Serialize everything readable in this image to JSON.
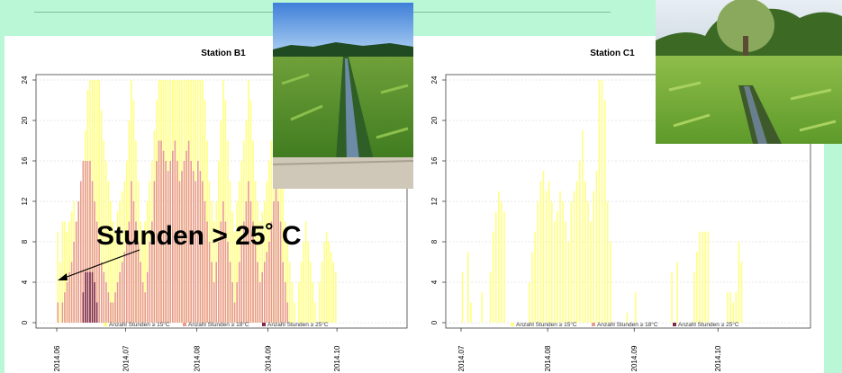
{
  "annotation": "Stunden > 25˚ C",
  "colors": {
    "background": "#b9f7d6",
    "ge15": "#ffff7f",
    "ge18": "#e89a8c",
    "ge25": "#7f2a4a",
    "grid": "#cfcfcf"
  },
  "chart_data": [
    {
      "type": "bar",
      "title": "Station B1",
      "ylim": [
        0,
        24
      ],
      "yticks": [
        "0",
        "4",
        "8",
        "12",
        "16",
        "20",
        "24"
      ],
      "xticks": [
        "2014.06",
        "2014.07",
        "2014.08",
        "2014.09",
        "2014.10"
      ],
      "xtick_days": [
        0,
        30,
        61,
        92,
        122
      ],
      "legend": [
        "Anzahl Stunden ≥ 15°C",
        "Anzahl Stunden ≥ 18°C",
        "Anzahl Stunden ≥ 25°C"
      ],
      "legend_position": "bottom",
      "series": [
        {
          "name": "Anzahl Stunden ≥ 15°C",
          "start_date": "2014-05-28",
          "values": [
            9,
            6,
            10,
            10,
            9,
            10,
            11,
            12,
            10,
            12,
            13,
            16,
            19,
            23,
            24,
            24,
            24,
            24,
            24,
            21,
            18,
            16,
            14,
            12,
            10,
            9,
            11,
            12,
            13,
            14,
            16,
            20,
            24,
            22,
            18,
            14,
            10,
            8,
            10,
            12,
            14,
            16,
            19,
            22,
            24,
            24,
            24,
            24,
            24,
            24,
            24,
            24,
            24,
            24,
            24,
            24,
            24,
            24,
            24,
            24,
            24,
            24,
            24,
            24,
            22,
            18,
            14,
            12,
            10,
            12,
            16,
            20,
            24,
            22,
            18,
            14,
            11,
            9,
            12,
            14,
            16,
            18,
            20,
            24,
            22,
            18,
            14,
            12,
            10,
            11,
            12,
            14,
            16,
            18,
            20,
            24,
            22,
            18,
            14,
            10,
            8,
            6,
            4,
            2,
            0,
            4,
            6,
            8,
            10,
            8,
            6,
            4,
            2,
            0,
            4,
            6,
            8,
            9,
            8,
            7,
            6,
            5
          ]
        },
        {
          "name": "Anzahl Stunden ≥ 18°C",
          "start_date": "2014-05-28",
          "values": [
            2,
            0,
            2,
            3,
            4,
            5,
            6,
            8,
            10,
            12,
            14,
            16,
            16,
            16,
            16,
            14,
            12,
            10,
            8,
            6,
            5,
            4,
            3,
            2,
            2,
            3,
            4,
            5,
            6,
            7,
            8,
            10,
            14,
            12,
            10,
            8,
            6,
            4,
            3,
            5,
            8,
            10,
            14,
            16,
            18,
            18,
            17,
            16,
            15,
            16,
            17,
            18,
            16,
            14,
            15,
            16,
            17,
            18,
            16,
            15,
            14,
            16,
            15,
            14,
            12,
            10,
            8,
            6,
            4,
            6,
            8,
            10,
            12,
            10,
            8,
            6,
            4,
            2,
            4,
            6,
            8,
            10,
            12,
            14,
            12,
            10,
            8,
            6,
            4,
            5,
            6,
            7,
            8,
            10,
            12,
            14,
            12,
            10,
            6,
            4,
            2,
            0,
            0,
            0,
            0,
            0,
            0,
            0,
            0,
            0,
            0,
            0,
            0,
            0,
            0,
            0,
            0,
            0,
            0,
            0,
            0,
            0
          ]
        },
        {
          "name": "Anzahl Stunden ≥ 25°C",
          "start_date": "2014-05-28",
          "values": [
            0,
            0,
            0,
            0,
            0,
            0,
            0,
            0,
            0,
            0,
            0,
            3,
            5,
            5,
            5,
            5,
            4,
            2,
            0,
            0,
            0,
            0,
            0,
            0,
            0,
            0,
            0,
            0,
            0,
            0,
            0,
            0,
            0,
            0,
            0,
            0,
            0,
            0,
            0,
            0,
            0,
            0,
            0,
            0,
            0,
            0,
            0,
            0,
            0,
            0,
            0,
            0,
            0,
            0,
            0,
            0,
            0,
            0,
            0,
            0,
            0,
            0,
            0,
            0,
            0,
            0,
            0,
            0,
            0,
            0,
            0,
            0,
            0,
            0,
            0,
            0,
            0,
            0,
            0,
            0,
            0,
            0,
            0,
            0,
            0,
            0,
            0,
            0,
            0,
            0,
            0,
            0,
            0,
            0,
            0,
            0,
            0,
            0,
            0,
            0,
            0,
            0,
            0,
            0,
            0,
            0,
            0,
            0,
            0,
            0,
            0,
            0,
            0,
            0,
            0,
            0,
            0,
            0,
            0,
            0,
            0,
            0
          ]
        }
      ]
    },
    {
      "type": "bar",
      "title": "Station C1",
      "ylim": [
        0,
        24
      ],
      "yticks": [
        "0",
        "4",
        "8",
        "12",
        "16",
        "20",
        "24"
      ],
      "xticks": [
        "2014.07",
        "2014.08",
        "2014.09",
        "2014.10"
      ],
      "xtick_days": [
        0,
        31,
        62,
        92
      ],
      "legend": [
        "Anzahl Stunden ≥ 15°C",
        "Anzahl Stunden ≥ 18°C",
        "Anzahl Stunden ≥ 25°C"
      ],
      "legend_position": "bottom",
      "series": [
        {
          "name": "Anzahl Stunden ≥ 15°C",
          "start_date": "2014-06-25",
          "values": [
            5,
            0,
            7,
            2,
            0,
            0,
            0,
            3,
            0,
            0,
            5,
            9,
            11,
            13,
            12,
            11,
            0,
            0,
            0,
            0,
            0,
            0,
            0,
            0,
            4,
            7,
            9,
            12,
            14,
            15,
            13,
            14,
            12,
            10,
            11,
            13,
            12,
            10,
            8,
            12,
            13,
            14,
            16,
            19,
            14,
            12,
            10,
            13,
            15,
            24,
            24,
            22,
            12,
            8,
            0,
            0,
            0,
            0,
            0,
            1,
            0,
            0,
            3,
            0,
            0,
            0,
            0,
            0,
            0,
            0,
            0,
            0,
            0,
            0,
            0,
            5,
            0,
            6,
            0,
            0,
            0,
            0,
            0,
            5,
            7,
            9,
            9,
            9,
            9,
            0,
            0,
            0,
            0,
            0,
            0,
            3,
            3,
            2,
            3,
            8,
            6
          ]
        },
        {
          "name": "Anzahl Stunden ≥ 18°C",
          "start_date": "2014-06-25",
          "values": []
        },
        {
          "name": "Anzahl Stunden ≥ 25°C",
          "start_date": "2014-06-25",
          "values": []
        }
      ]
    }
  ]
}
